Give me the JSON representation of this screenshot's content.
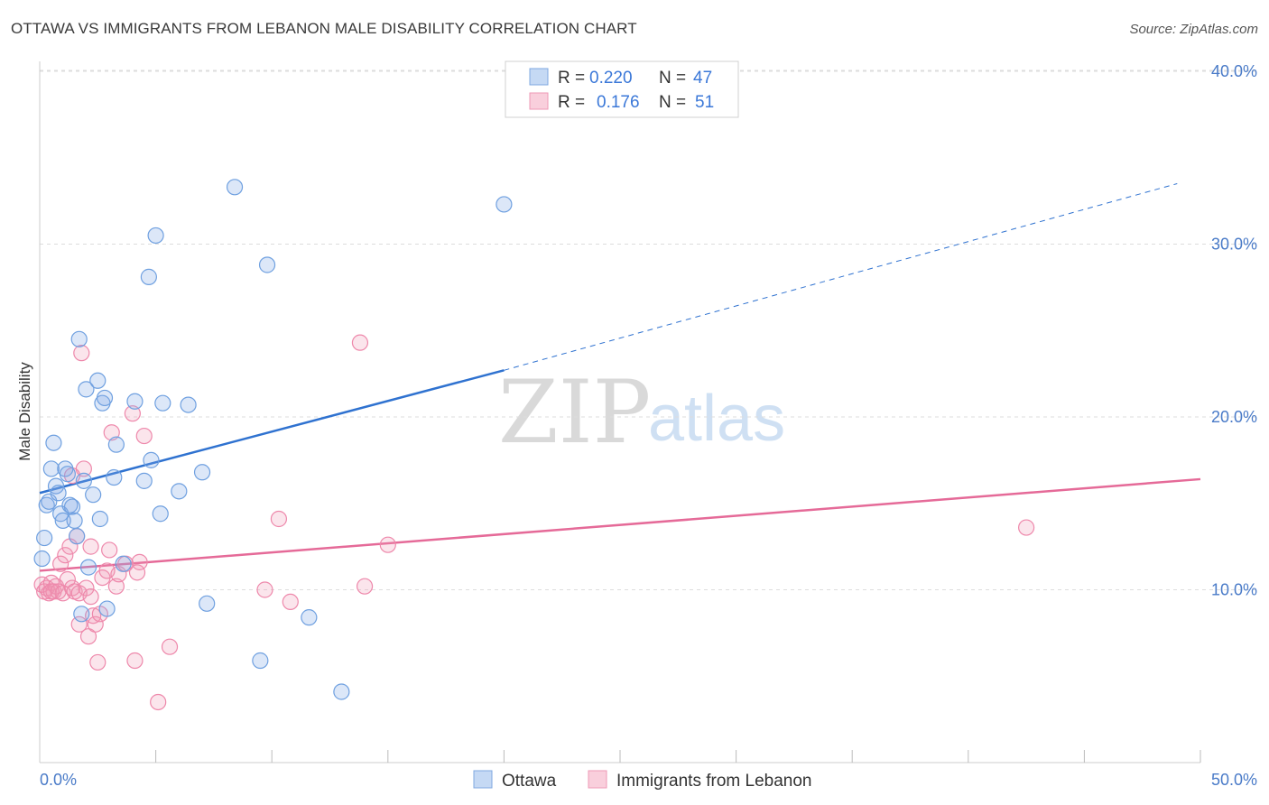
{
  "title": "OTTAWA VS IMMIGRANTS FROM LEBANON MALE DISABILITY CORRELATION CHART",
  "source": "Source: ZipAtlas.com",
  "colors": {
    "blue": "#6fa0e0",
    "blue_line": "#2f72d0",
    "pink": "#ee88ab",
    "pink_line": "#e56a98",
    "tick_text": "#4a7bc8"
  },
  "watermark": {
    "zip": "ZIP",
    "atlas": "atlas"
  },
  "legend_top": [
    {
      "r_label": "R =",
      "r_value": "0.220",
      "n_label": "N =",
      "n_value": "47"
    },
    {
      "r_label": "R =",
      "r_value": "0.176",
      "n_label": "N =",
      "n_value": "51"
    }
  ],
  "chart_data": {
    "type": "scatter",
    "title": "OTTAWA VS IMMIGRANTS FROM LEBANON MALE DISABILITY CORRELATION CHART",
    "xlabel": "",
    "ylabel": "Male Disability",
    "xlim": [
      0,
      50
    ],
    "ylim": [
      0,
      42
    ],
    "x_tick_labels": [
      "0.0%",
      "50.0%"
    ],
    "y_ticks": [
      10,
      20,
      30,
      40
    ],
    "y_tick_labels": [
      "10.0%",
      "20.0%",
      "30.0%",
      "40.0%"
    ],
    "legend_position": "bottom",
    "series": [
      {
        "name": "Ottawa",
        "r": 0.22,
        "n": 47,
        "trend": {
          "x0": 0,
          "y0": 15.6,
          "x1": 20,
          "y1": 22.7,
          "dashed_to_x": 49,
          "dashed_to_y": 33.5
        },
        "points": [
          [
            0.1,
            11.8
          ],
          [
            0.2,
            13.0
          ],
          [
            0.3,
            14.9
          ],
          [
            0.4,
            15.1
          ],
          [
            0.5,
            17.0
          ],
          [
            0.6,
            18.5
          ],
          [
            0.7,
            16.0
          ],
          [
            0.8,
            15.6
          ],
          [
            0.9,
            14.4
          ],
          [
            1.0,
            14.0
          ],
          [
            1.1,
            17.0
          ],
          [
            1.2,
            16.7
          ],
          [
            1.3,
            14.9
          ],
          [
            1.4,
            14.8
          ],
          [
            1.5,
            14.0
          ],
          [
            1.6,
            13.1
          ],
          [
            1.7,
            24.5
          ],
          [
            1.8,
            8.6
          ],
          [
            1.9,
            16.3
          ],
          [
            2.0,
            21.6
          ],
          [
            2.1,
            11.3
          ],
          [
            2.3,
            15.5
          ],
          [
            2.5,
            22.1
          ],
          [
            2.6,
            14.1
          ],
          [
            2.7,
            20.8
          ],
          [
            2.8,
            21.1
          ],
          [
            2.9,
            8.9
          ],
          [
            3.2,
            16.5
          ],
          [
            3.3,
            18.4
          ],
          [
            3.6,
            11.5
          ],
          [
            4.1,
            20.9
          ],
          [
            4.5,
            16.3
          ],
          [
            4.7,
            28.1
          ],
          [
            4.8,
            17.5
          ],
          [
            5.0,
            30.5
          ],
          [
            5.2,
            14.4
          ],
          [
            5.3,
            20.8
          ],
          [
            6.0,
            15.7
          ],
          [
            6.4,
            20.7
          ],
          [
            7.0,
            16.8
          ],
          [
            7.2,
            9.2
          ],
          [
            8.4,
            33.3
          ],
          [
            9.5,
            5.9
          ],
          [
            9.8,
            28.8
          ],
          [
            11.6,
            8.4
          ],
          [
            13.0,
            4.1
          ],
          [
            20.0,
            32.3
          ]
        ]
      },
      {
        "name": "Immigrants from Lebanon",
        "r": 0.176,
        "n": 51,
        "trend": {
          "x0": 0,
          "y0": 11.1,
          "x1": 50,
          "y1": 16.4
        },
        "points": [
          [
            0.1,
            10.3
          ],
          [
            0.2,
            9.9
          ],
          [
            0.3,
            10.1
          ],
          [
            0.4,
            9.8
          ],
          [
            0.5,
            10.4
          ],
          [
            0.6,
            9.9
          ],
          [
            0.7,
            10.2
          ],
          [
            0.8,
            9.9
          ],
          [
            0.9,
            11.5
          ],
          [
            1.0,
            9.8
          ],
          [
            1.1,
            12.0
          ],
          [
            1.2,
            10.6
          ],
          [
            1.3,
            12.5
          ],
          [
            1.4,
            10.1
          ],
          [
            1.5,
            9.9
          ],
          [
            1.6,
            13.1
          ],
          [
            1.7,
            8.0
          ],
          [
            1.8,
            23.7
          ],
          [
            1.9,
            17.0
          ],
          [
            2.0,
            10.1
          ],
          [
            2.1,
            7.3
          ],
          [
            2.2,
            12.5
          ],
          [
            2.3,
            8.5
          ],
          [
            2.4,
            8.0
          ],
          [
            2.5,
            5.8
          ],
          [
            2.6,
            8.6
          ],
          [
            2.7,
            10.7
          ],
          [
            2.9,
            11.1
          ],
          [
            3.1,
            19.1
          ],
          [
            3.0,
            12.3
          ],
          [
            3.3,
            10.2
          ],
          [
            3.4,
            10.9
          ],
          [
            3.7,
            11.5
          ],
          [
            4.0,
            20.2
          ],
          [
            4.1,
            5.9
          ],
          [
            4.2,
            11.0
          ],
          [
            4.3,
            11.6
          ],
          [
            4.5,
            18.9
          ],
          [
            5.1,
            3.5
          ],
          [
            5.6,
            6.7
          ],
          [
            1.4,
            16.6
          ],
          [
            1.7,
            9.8
          ],
          [
            9.7,
            10.0
          ],
          [
            10.3,
            14.1
          ],
          [
            10.8,
            9.3
          ],
          [
            13.8,
            24.3
          ],
          [
            14.0,
            10.2
          ],
          [
            15.0,
            12.6
          ],
          [
            42.5,
            13.6
          ],
          [
            0.5,
            9.9
          ],
          [
            2.2,
            9.6
          ]
        ]
      }
    ]
  }
}
